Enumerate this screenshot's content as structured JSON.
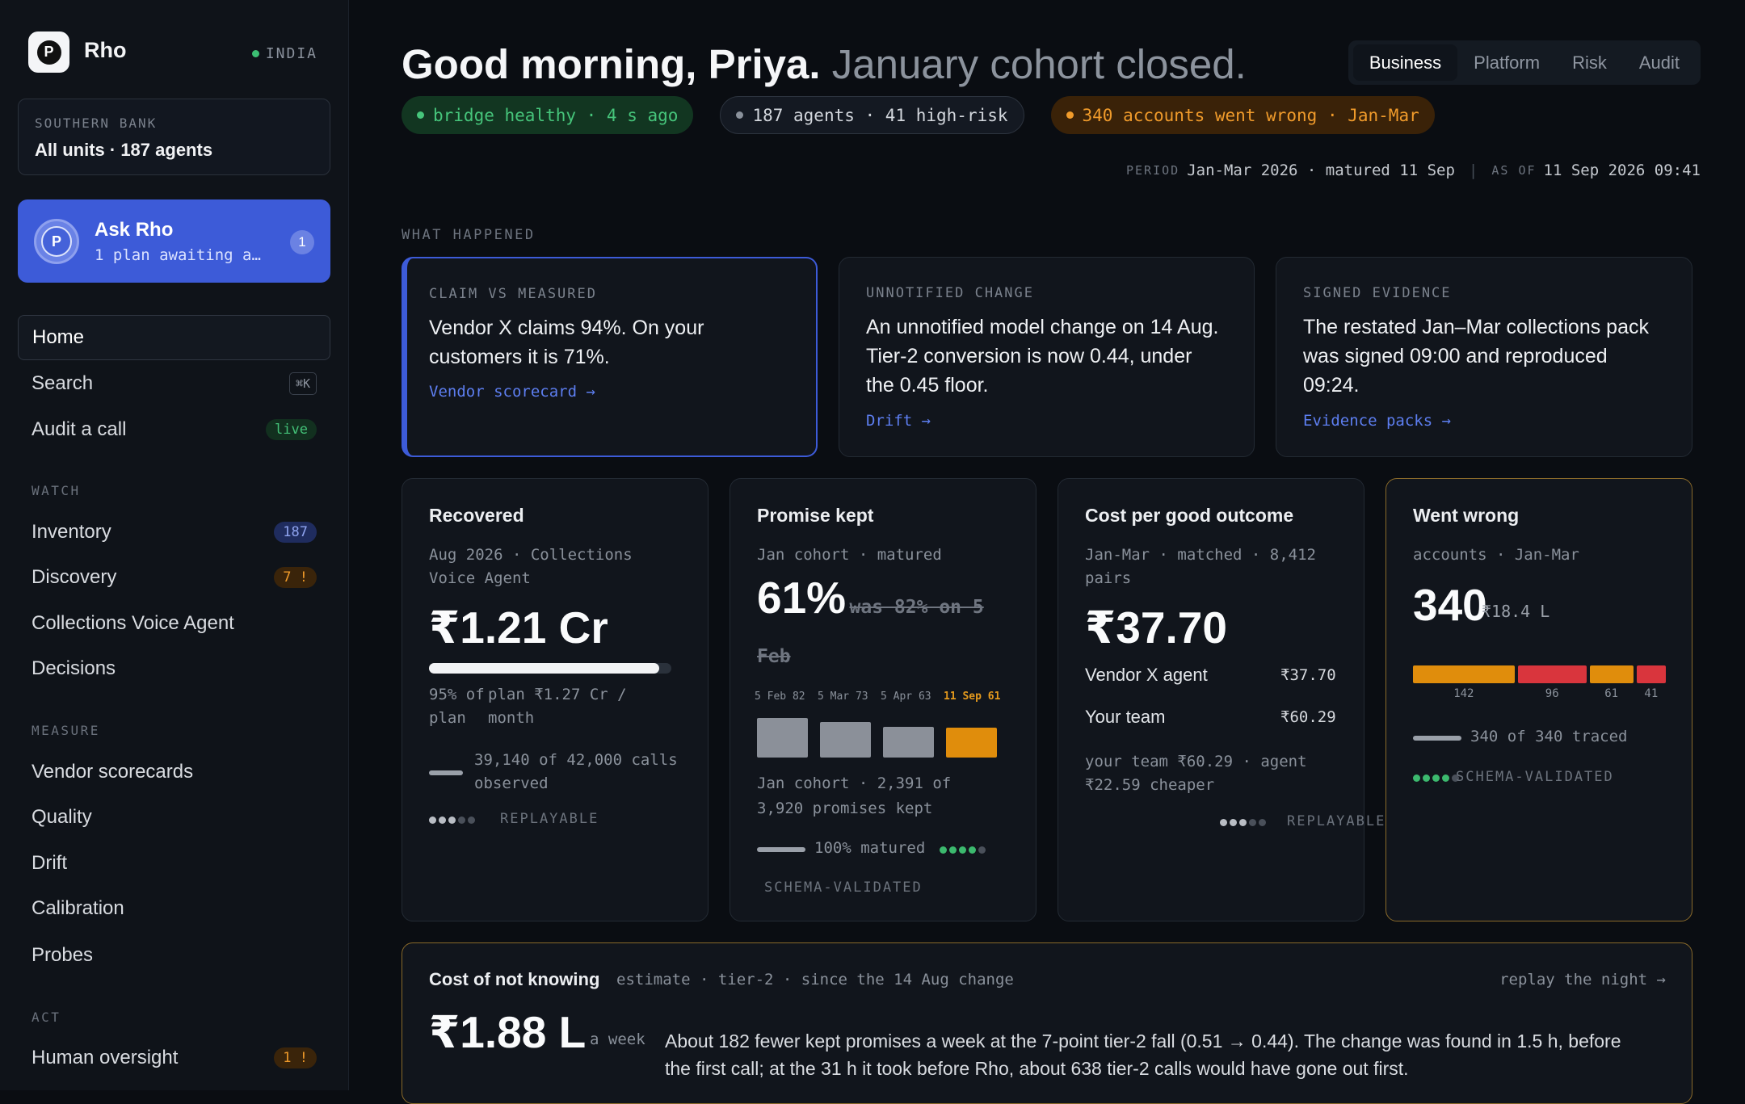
{
  "brand": {
    "name": "Rho",
    "region": "INDIA",
    "logo_letter": "P"
  },
  "org": {
    "label": "SOUTHERN BANK",
    "name": "All units · 187 agents"
  },
  "ask": {
    "title": "Ask Rho",
    "subtitle": "1 plan awaiting a…",
    "badge": "1",
    "avatar_letter": "P"
  },
  "nav": {
    "home": "Home",
    "search": "Search",
    "search_kbd": "⌘K",
    "audit": "Audit a call",
    "audit_pill": "live",
    "watch_label": "WATCH",
    "inventory": "Inventory",
    "inventory_count": "187",
    "discovery": "Discovery",
    "discovery_count": "7 !",
    "collections": "Collections Voice Agent",
    "decisions": "Decisions",
    "measure_label": "MEASURE",
    "vendor": "Vendor scorecards",
    "quality": "Quality",
    "drift": "Drift",
    "calibration": "Calibration",
    "probes": "Probes",
    "act_label": "ACT",
    "oversight": "Human oversight",
    "oversight_count": "1 !"
  },
  "header": {
    "greeting": "Good morning, Priya.",
    "subtitle": "January cohort closed.",
    "tabs": [
      "Business",
      "Platform",
      "Risk",
      "Audit"
    ],
    "chips": {
      "bridge": "bridge healthy · 4 s ago",
      "agents": "187 agents · 41 high-risk",
      "wrong": "340 accounts went wrong · Jan-Mar"
    },
    "period_key": "PERIOD",
    "period_value": "Jan-Mar 2026 · matured 11 Sep",
    "asof_key": "AS OF",
    "asof_value": "11 Sep 2026 09:41"
  },
  "what_happened": {
    "label": "WHAT HAPPENED",
    "cards": [
      {
        "label": "CLAIM VS MEASURED",
        "text": "Vendor X claims 94%. On your customers it is 71%.",
        "link": "Vendor scorecard →"
      },
      {
        "label": "UNNOTIFIED CHANGE",
        "text": "An unnotified model change on 14 Aug. Tier-2 conversion is now 0.44, under the 0.45 floor.",
        "link": "Drift →"
      },
      {
        "label": "SIGNED EVIDENCE",
        "text": "The restated Jan–Mar collections pack was signed 09:00 and reproduced 09:24.",
        "link": "Evidence packs →"
      }
    ]
  },
  "metrics": {
    "recovered": {
      "title": "Recovered",
      "sub": "Aug 2026 · Collections Voice Agent",
      "value": "₹1.21 Cr",
      "progress": 0.95,
      "pct_label": "95% of plan",
      "plan_label": "plan ₹1.27 Cr / month",
      "observed": "39,140 of 42,000 calls observed",
      "tag": "REPLAYABLE"
    },
    "promise": {
      "title": "Promise kept",
      "sub": "Jan cohort · matured",
      "value": "61%",
      "was": "was 82% on 5 Feb",
      "bars": [
        {
          "label": "5 Feb",
          "value": 82
        },
        {
          "label": "5 Mar",
          "value": 73
        },
        {
          "label": "5 Apr",
          "value": 63
        },
        {
          "label": "11 Sep",
          "value": 61
        }
      ],
      "desc": "Jan cohort · 2,391 of 3,920 promises kept",
      "matured": "100% matured",
      "tag": "SCHEMA-VALIDATED"
    },
    "cost": {
      "title": "Cost per good outcome",
      "sub": "Jan-Mar · matched · 8,412 pairs",
      "value": "₹37.70",
      "rows": [
        {
          "label": "Vendor X agent",
          "value": "₹37.70"
        },
        {
          "label": "Your team",
          "value": "₹60.29"
        }
      ],
      "note": "your team ₹60.29 · agent ₹22.59 cheaper",
      "tag": "REPLAYABLE"
    },
    "wrong": {
      "title": "Went wrong",
      "sub": "accounts · Jan-Mar",
      "value": "340",
      "amount": "₹18.4 L",
      "segments": [
        {
          "value": 142,
          "color": "#e08d0c"
        },
        {
          "value": 96,
          "color": "#d9353d"
        },
        {
          "value": 61,
          "color": "#e08d0c"
        },
        {
          "value": 41,
          "color": "#d9353d"
        }
      ],
      "traced": "340 of 340 traced",
      "tag": "SCHEMA-VALIDATED"
    }
  },
  "cost_unknown": {
    "title": "Cost of not knowing",
    "meta": "estimate · tier-2 · since the 14 Aug change",
    "link": "replay the night →",
    "value": "₹1.88 L",
    "unit": "a week",
    "text": "About 182 fewer kept promises a week at the 7-point tier-2 fall (0.51 → 0.44). The change was found in 1.5 h, before the first call; at the 31 h it took before Rho, about 638 tier-2 calls would have gone out first."
  },
  "colors": {
    "accent": "#3d5bd8",
    "green": "#46c57b",
    "orange": "#e08d0c",
    "red": "#d9353d",
    "gold_border": "#8a6a2a"
  }
}
